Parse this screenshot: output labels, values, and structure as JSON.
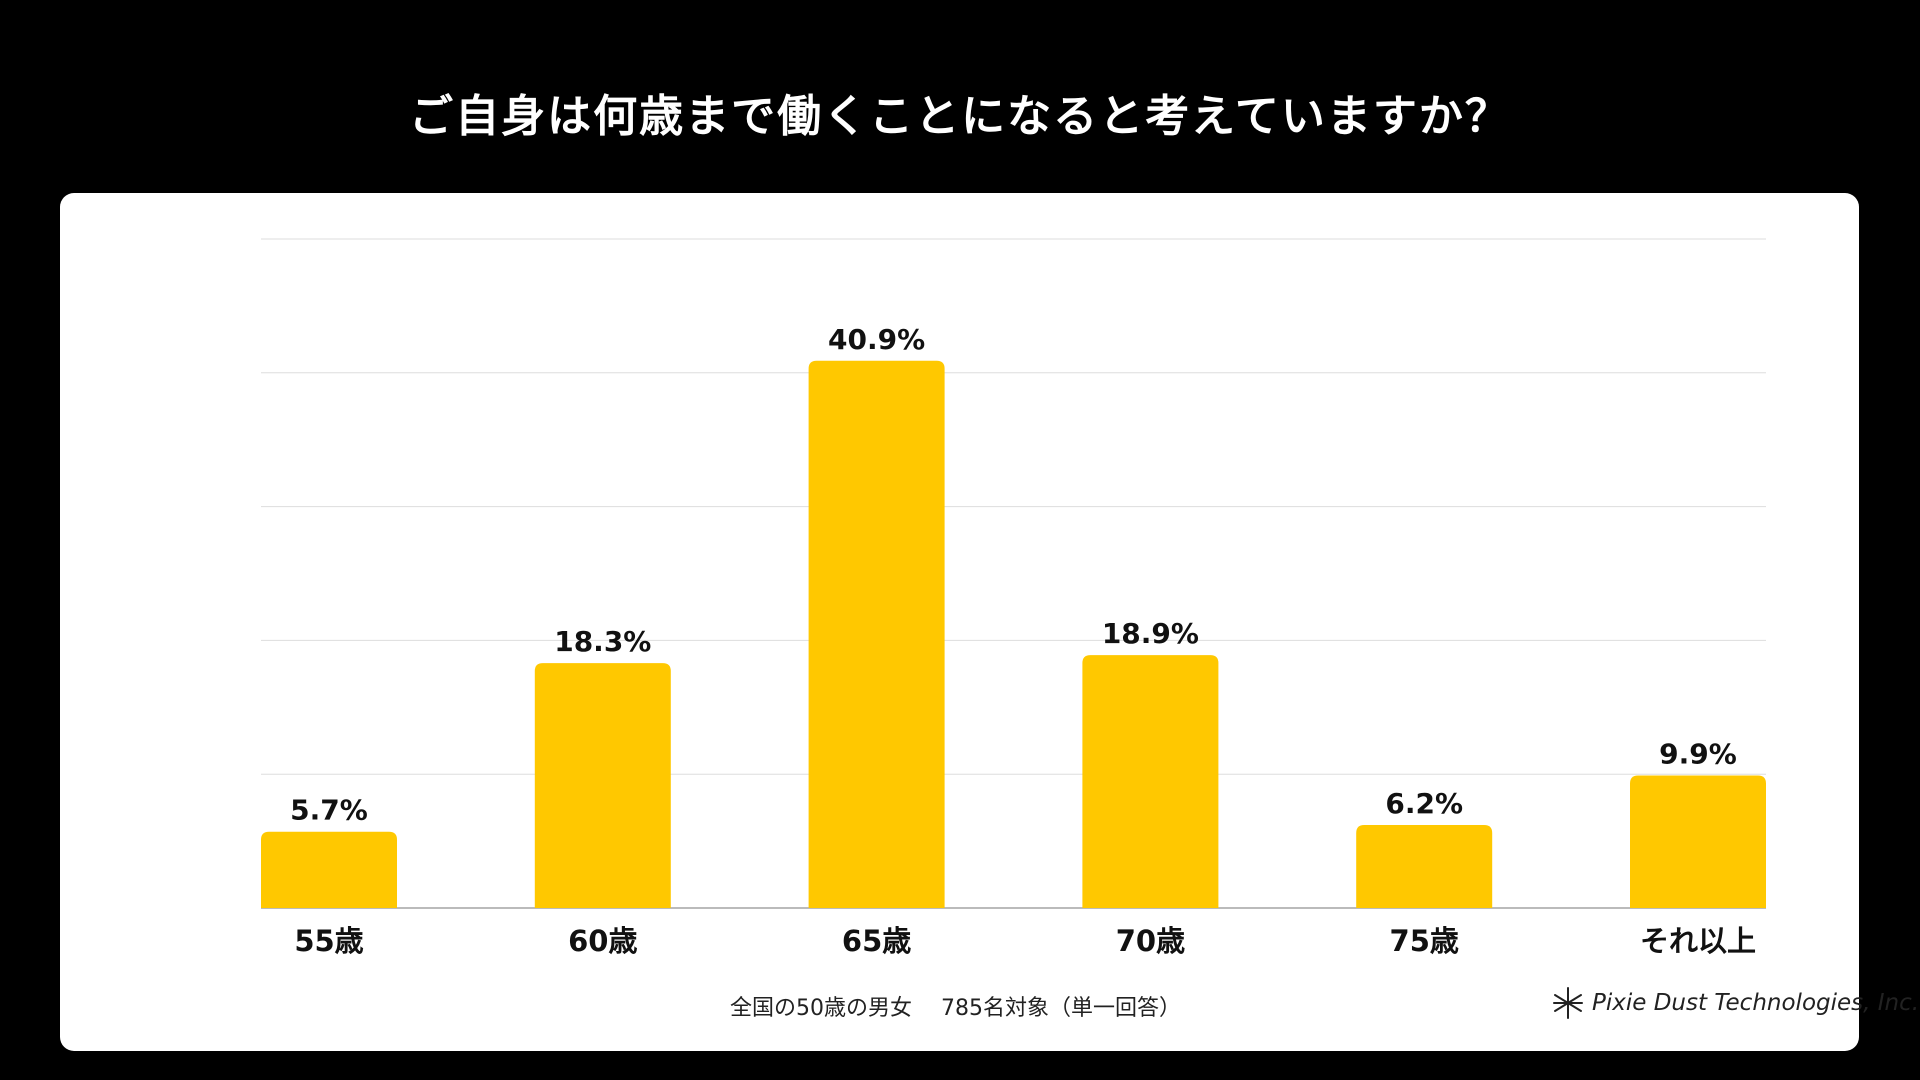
{
  "title": "ご自身は何歳まで働くことになると考えていますか？",
  "note": "全国の50歳の男女　 785名対象（単一回答）",
  "logo_text": "Pixie Dust Technologies, Inc.",
  "colors": {
    "bar": "#FFC800",
    "background": "#000000",
    "card": "#FFFFFF",
    "grid": "#DDDDDD"
  },
  "chart_data": {
    "type": "bar",
    "categories": [
      "55歳",
      "60歳",
      "65歳",
      "70歳",
      "75歳",
      "それ以上"
    ],
    "values": [
      5.7,
      18.3,
      40.9,
      18.9,
      6.2,
      9.9
    ],
    "value_labels": [
      "5.7%",
      "18.3%",
      "40.9%",
      "18.9%",
      "6.2%",
      "9.9%"
    ],
    "unit": "%",
    "ylim": [
      0,
      50
    ],
    "grid": true,
    "xlabel": "",
    "ylabel": ""
  }
}
